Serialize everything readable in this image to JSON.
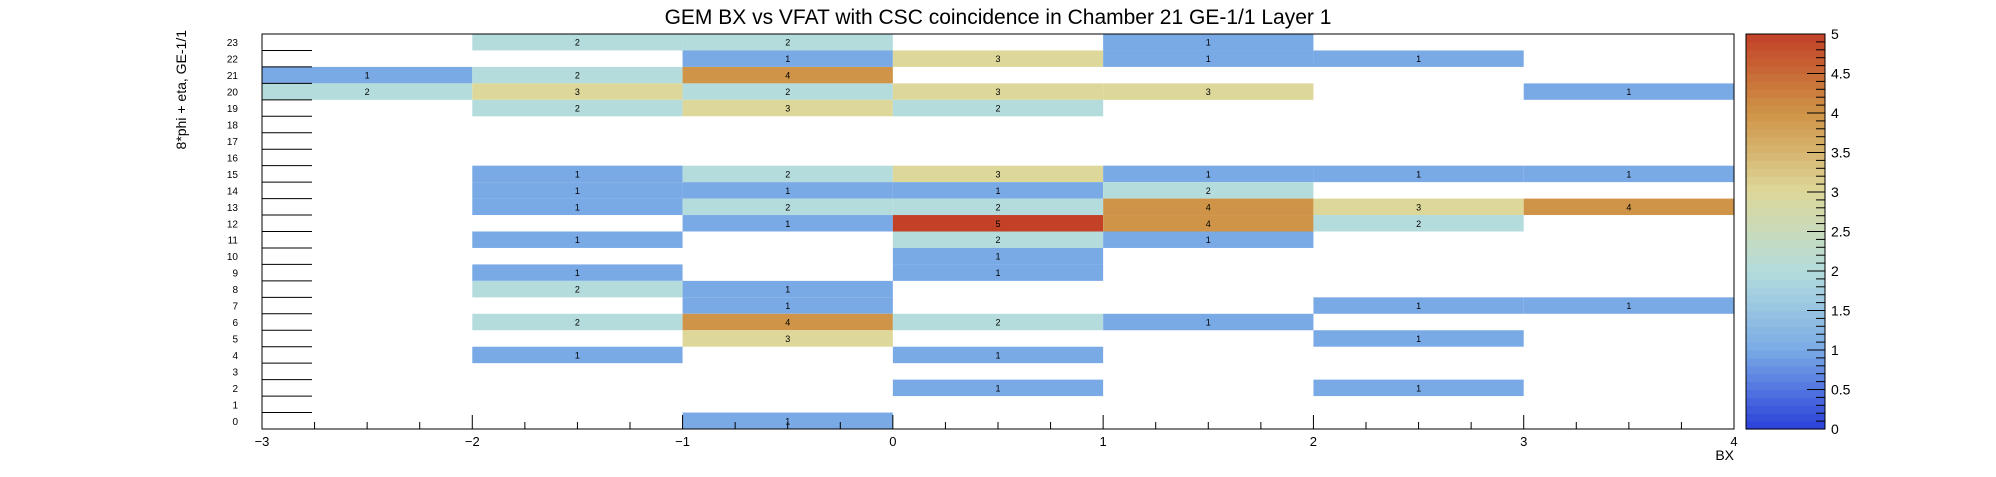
{
  "chart_data": {
    "type": "heatmap",
    "title": "GEM BX vs VFAT with CSC coincidence in Chamber 21 GE-1/1 Layer 1",
    "xlabel": "BX",
    "ylabel": "8*phi + eta, GE-1/1",
    "xlim": [
      -3,
      4
    ],
    "ylim": [
      0,
      24
    ],
    "x_ticks": [
      "−3",
      "−2",
      "−1",
      "0",
      "1",
      "2",
      "3",
      "4"
    ],
    "y_ticks": [
      "0",
      "1",
      "2",
      "3",
      "4",
      "5",
      "6",
      "7",
      "8",
      "9",
      "10",
      "11",
      "12",
      "13",
      "14",
      "15",
      "16",
      "17",
      "18",
      "19",
      "20",
      "21",
      "22",
      "23"
    ],
    "z_range": [
      0,
      5
    ],
    "colorbar_ticks": [
      "0",
      "0.5",
      "1",
      "1.5",
      "2",
      "2.5",
      "3",
      "3.5",
      "4",
      "4.5",
      "5"
    ],
    "color_scale": [
      "#2a3fd9",
      "#7aaae6",
      "#b4dcdc",
      "#ddd89a",
      "#cf9447",
      "#c24127"
    ],
    "cells": [
      {
        "y": 23,
        "x": -2,
        "v": 2
      },
      {
        "y": 23,
        "x": -1,
        "v": 2
      },
      {
        "y": 23,
        "x": 1,
        "v": 1
      },
      {
        "y": 22,
        "x": -1,
        "v": 1
      },
      {
        "y": 22,
        "x": 0,
        "v": 3
      },
      {
        "y": 22,
        "x": 1,
        "v": 1
      },
      {
        "y": 22,
        "x": 2,
        "v": 1
      },
      {
        "y": 21,
        "x": -3,
        "v": 1
      },
      {
        "y": 21,
        "x": -2,
        "v": 2
      },
      {
        "y": 21,
        "x": -1,
        "v": 4
      },
      {
        "y": 20,
        "x": -3,
        "v": 2
      },
      {
        "y": 20,
        "x": -2,
        "v": 3
      },
      {
        "y": 20,
        "x": -1,
        "v": 2
      },
      {
        "y": 20,
        "x": 0,
        "v": 3
      },
      {
        "y": 20,
        "x": 1,
        "v": 3
      },
      {
        "y": 20,
        "x": 3,
        "v": 1
      },
      {
        "y": 19,
        "x": -2,
        "v": 2
      },
      {
        "y": 19,
        "x": -1,
        "v": 3
      },
      {
        "y": 19,
        "x": 0,
        "v": 2
      },
      {
        "y": 15,
        "x": -2,
        "v": 1
      },
      {
        "y": 15,
        "x": -1,
        "v": 2
      },
      {
        "y": 15,
        "x": 0,
        "v": 3
      },
      {
        "y": 15,
        "x": 1,
        "v": 1
      },
      {
        "y": 15,
        "x": 2,
        "v": 1
      },
      {
        "y": 15,
        "x": 3,
        "v": 1
      },
      {
        "y": 14,
        "x": -2,
        "v": 1
      },
      {
        "y": 14,
        "x": -1,
        "v": 1
      },
      {
        "y": 14,
        "x": 0,
        "v": 1
      },
      {
        "y": 14,
        "x": 1,
        "v": 2
      },
      {
        "y": 13,
        "x": -2,
        "v": 1
      },
      {
        "y": 13,
        "x": -1,
        "v": 2
      },
      {
        "y": 13,
        "x": 0,
        "v": 2
      },
      {
        "y": 13,
        "x": 1,
        "v": 4
      },
      {
        "y": 13,
        "x": 2,
        "v": 3
      },
      {
        "y": 13,
        "x": 3,
        "v": 4
      },
      {
        "y": 12,
        "x": -1,
        "v": 1
      },
      {
        "y": 12,
        "x": 0,
        "v": 5
      },
      {
        "y": 12,
        "x": 1,
        "v": 4
      },
      {
        "y": 12,
        "x": 2,
        "v": 2
      },
      {
        "y": 11,
        "x": -2,
        "v": 1
      },
      {
        "y": 11,
        "x": 0,
        "v": 2
      },
      {
        "y": 11,
        "x": 1,
        "v": 1
      },
      {
        "y": 10,
        "x": 0,
        "v": 1
      },
      {
        "y": 9,
        "x": -2,
        "v": 1
      },
      {
        "y": 9,
        "x": 0,
        "v": 1
      },
      {
        "y": 8,
        "x": -2,
        "v": 2
      },
      {
        "y": 8,
        "x": -1,
        "v": 1
      },
      {
        "y": 7,
        "x": -1,
        "v": 1
      },
      {
        "y": 7,
        "x": 2,
        "v": 1
      },
      {
        "y": 7,
        "x": 3,
        "v": 1
      },
      {
        "y": 6,
        "x": -2,
        "v": 2
      },
      {
        "y": 6,
        "x": -1,
        "v": 4
      },
      {
        "y": 6,
        "x": 0,
        "v": 2
      },
      {
        "y": 6,
        "x": 1,
        "v": 1
      },
      {
        "y": 5,
        "x": -1,
        "v": 3
      },
      {
        "y": 5,
        "x": 2,
        "v": 1
      },
      {
        "y": 4,
        "x": -2,
        "v": 1
      },
      {
        "y": 4,
        "x": 0,
        "v": 1
      },
      {
        "y": 2,
        "x": 0,
        "v": 1
      },
      {
        "y": 2,
        "x": 2,
        "v": 1
      },
      {
        "y": 0,
        "x": -1,
        "v": 1
      }
    ]
  }
}
